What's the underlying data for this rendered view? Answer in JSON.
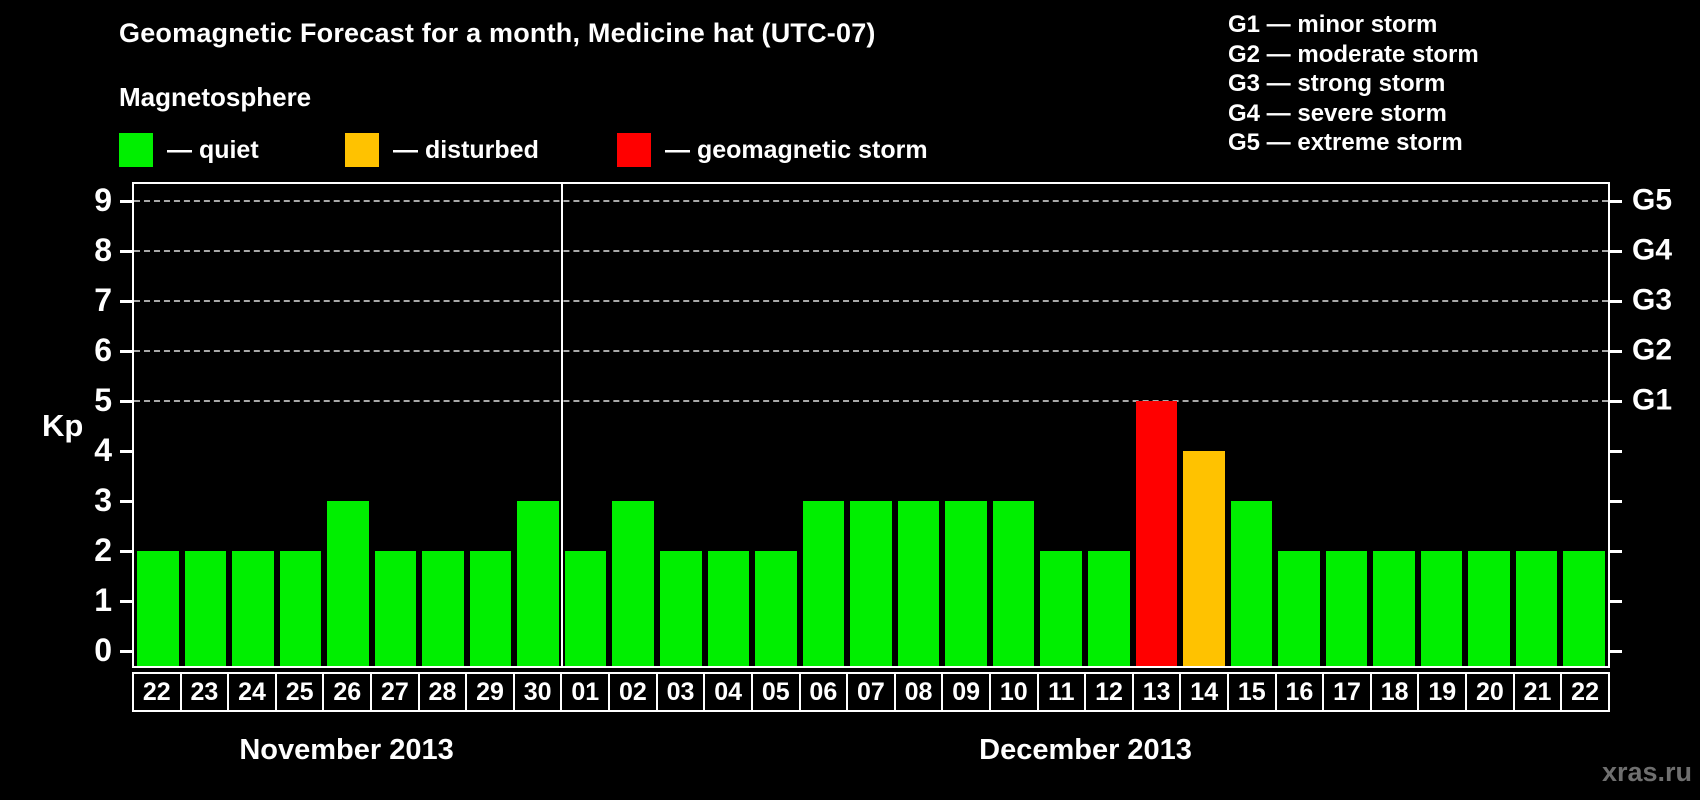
{
  "title": "Geomagnetic Forecast for a month, Medicine hat (UTC-07)",
  "legend": {
    "heading": "Magnetosphere",
    "items": [
      {
        "name": "quiet",
        "label": "— quiet",
        "color": "#00ef00"
      },
      {
        "name": "disturbed",
        "label": "— disturbed",
        "color": "#ffc200"
      },
      {
        "name": "storm",
        "label": "— geomagnetic storm",
        "color": "#ff0000"
      }
    ]
  },
  "g_scale_legend": [
    "G1 — minor storm",
    "G2 — moderate storm",
    "G3 — strong storm",
    "G4 — severe storm",
    "G5 — extreme storm"
  ],
  "watermark": "xras.ru",
  "chart_data": {
    "type": "bar",
    "title": "Geomagnetic Forecast for a month, Medicine hat (UTC-07)",
    "ylabel": "Kp",
    "ylim": [
      0,
      9
    ],
    "y_ticks": [
      0,
      1,
      2,
      3,
      4,
      5,
      6,
      7,
      8,
      9
    ],
    "grid_levels": [
      5,
      6,
      7,
      8,
      9
    ],
    "grid_on": true,
    "legend_position": "top",
    "right_axis": [
      {
        "kp": 5,
        "label": "G1"
      },
      {
        "kp": 6,
        "label": "G2"
      },
      {
        "kp": 7,
        "label": "G3"
      },
      {
        "kp": 8,
        "label": "G4"
      },
      {
        "kp": 9,
        "label": "G5"
      }
    ],
    "series_colors": {
      "quiet": "#00ef00",
      "disturbed": "#ffc200",
      "storm": "#ff0000"
    },
    "months": [
      {
        "label": "November 2013",
        "days": [
          {
            "day": "22",
            "kp": 2,
            "status": "quiet"
          },
          {
            "day": "23",
            "kp": 2,
            "status": "quiet"
          },
          {
            "day": "24",
            "kp": 2,
            "status": "quiet"
          },
          {
            "day": "25",
            "kp": 2,
            "status": "quiet"
          },
          {
            "day": "26",
            "kp": 3,
            "status": "quiet"
          },
          {
            "day": "27",
            "kp": 2,
            "status": "quiet"
          },
          {
            "day": "28",
            "kp": 2,
            "status": "quiet"
          },
          {
            "day": "29",
            "kp": 2,
            "status": "quiet"
          },
          {
            "day": "30",
            "kp": 3,
            "status": "quiet"
          }
        ]
      },
      {
        "label": "December 2013",
        "days": [
          {
            "day": "01",
            "kp": 2,
            "status": "quiet"
          },
          {
            "day": "02",
            "kp": 3,
            "status": "quiet"
          },
          {
            "day": "03",
            "kp": 2,
            "status": "quiet"
          },
          {
            "day": "04",
            "kp": 2,
            "status": "quiet"
          },
          {
            "day": "05",
            "kp": 2,
            "status": "quiet"
          },
          {
            "day": "06",
            "kp": 3,
            "status": "quiet"
          },
          {
            "day": "07",
            "kp": 3,
            "status": "quiet"
          },
          {
            "day": "08",
            "kp": 3,
            "status": "quiet"
          },
          {
            "day": "09",
            "kp": 3,
            "status": "quiet"
          },
          {
            "day": "10",
            "kp": 3,
            "status": "quiet"
          },
          {
            "day": "11",
            "kp": 2,
            "status": "quiet"
          },
          {
            "day": "12",
            "kp": 2,
            "status": "quiet"
          },
          {
            "day": "13",
            "kp": 5,
            "status": "storm"
          },
          {
            "day": "14",
            "kp": 4,
            "status": "disturbed"
          },
          {
            "day": "15",
            "kp": 3,
            "status": "quiet"
          },
          {
            "day": "16",
            "kp": 2,
            "status": "quiet"
          },
          {
            "day": "17",
            "kp": 2,
            "status": "quiet"
          },
          {
            "day": "18",
            "kp": 2,
            "status": "quiet"
          },
          {
            "day": "19",
            "kp": 2,
            "status": "quiet"
          },
          {
            "day": "20",
            "kp": 2,
            "status": "quiet"
          },
          {
            "day": "21",
            "kp": 2,
            "status": "quiet"
          },
          {
            "day": "22",
            "kp": 2,
            "status": "quiet"
          }
        ]
      }
    ]
  }
}
